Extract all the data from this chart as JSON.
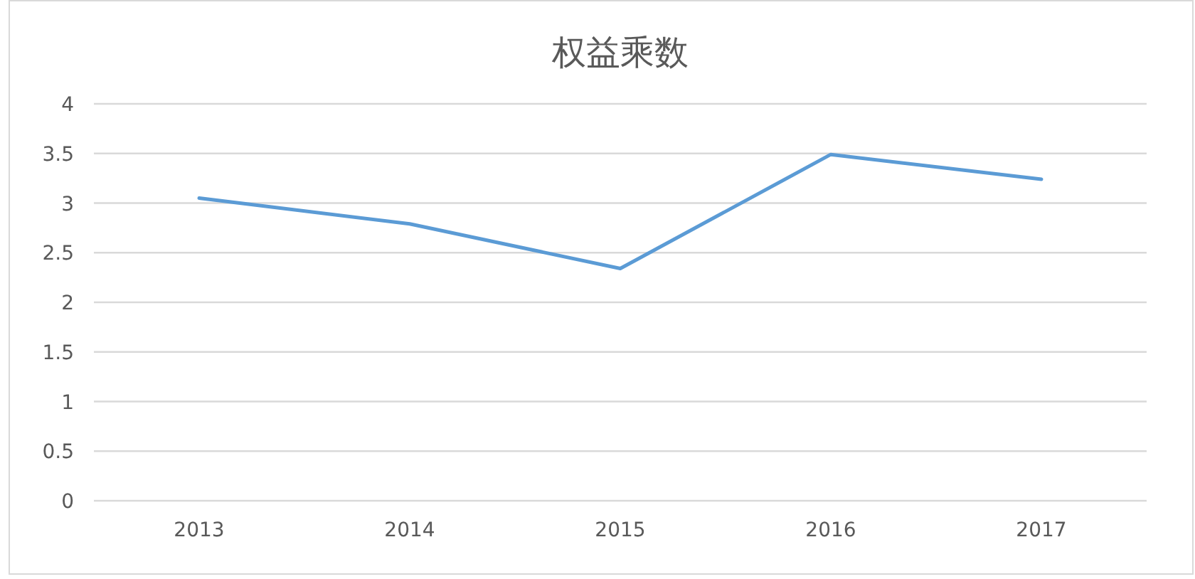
{
  "chart_data": {
    "type": "line",
    "title": "权益乘数",
    "categories": [
      "2013",
      "2014",
      "2015",
      "2016",
      "2017"
    ],
    "series": [
      {
        "color": "#5b9bd5",
        "values": [
          3.05,
          2.79,
          2.34,
          3.49,
          3.24
        ]
      }
    ],
    "ylim": [
      0,
      4
    ],
    "yticks": [
      0,
      0.5,
      1,
      1.5,
      2,
      2.5,
      3,
      3.5,
      4
    ],
    "grid": "y",
    "marker": "none",
    "line_style": "solid"
  }
}
